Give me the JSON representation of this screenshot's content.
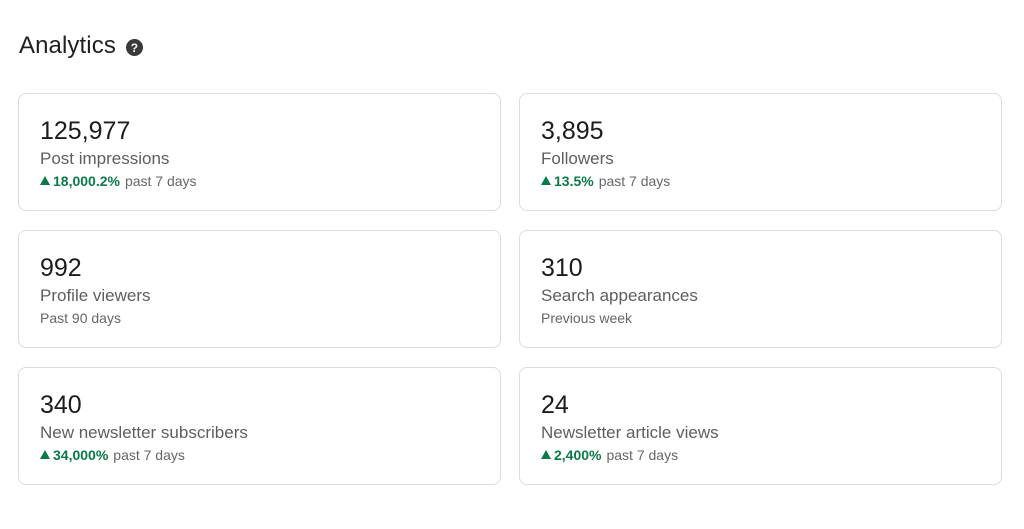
{
  "header": {
    "title": "Analytics",
    "help_icon": "question-circle-icon"
  },
  "colors": {
    "positive": "#0a7a4a",
    "border": "#dcdcdc"
  },
  "cards": [
    {
      "value": "125,977",
      "label": "Post impressions",
      "change": "18,000.2%",
      "period": "past 7 days"
    },
    {
      "value": "3,895",
      "label": "Followers",
      "change": "13.5%",
      "period": "past 7 days"
    },
    {
      "value": "992",
      "label": "Profile viewers",
      "period": "Past 90 days"
    },
    {
      "value": "310",
      "label": "Search appearances",
      "period": "Previous week"
    },
    {
      "value": "340",
      "label": "New newsletter subscribers",
      "change": "34,000%",
      "period": "past 7 days"
    },
    {
      "value": "24",
      "label": "Newsletter article views",
      "change": "2,400%",
      "period": "past 7 days"
    }
  ]
}
